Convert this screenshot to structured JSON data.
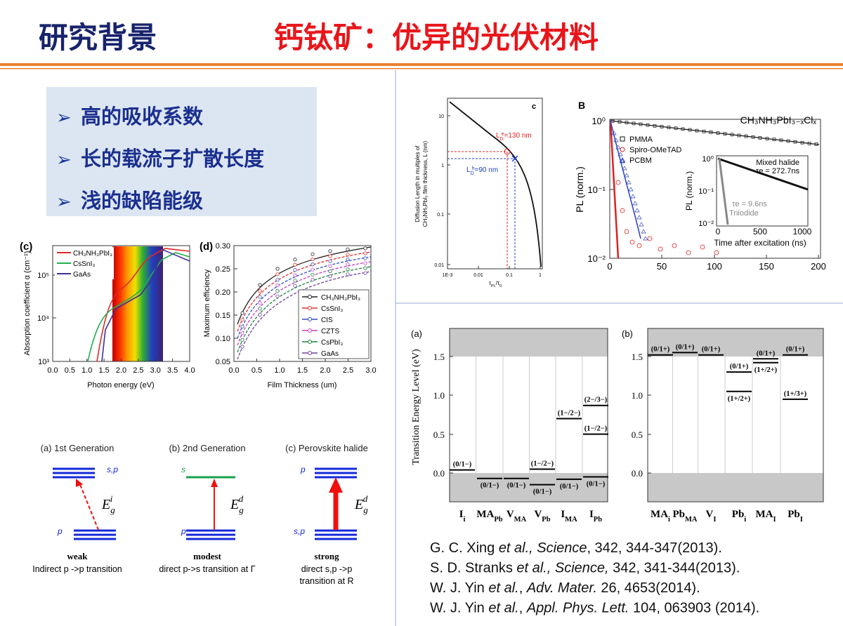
{
  "header": {
    "left": "研究背景",
    "right": "钙钛矿：优异的光伏材料"
  },
  "bullet_marker": "➢",
  "bullets": [
    "高的吸收系数",
    "长的载流子扩散长度",
    "浅的缺陷能级"
  ],
  "absorption": {
    "panel": "(c)",
    "ylabel": "Absorption coefficient α (cm⁻¹)",
    "xlabel": "Photon energy (eV)",
    "yticks": [
      "10⁵",
      "10⁴",
      "10³"
    ],
    "xticks": [
      "0.0",
      "0.5",
      "1.0",
      "1.5",
      "2.0",
      "2.5",
      "3.0",
      "3.5",
      "4.0"
    ],
    "legend": [
      "CH₃NH₃PbI₃",
      "CsSnI₃",
      "GaAs"
    ]
  },
  "efficiency": {
    "panel": "(d)",
    "ylabel": "Maximum efficiency",
    "xlabel": "Film Thickness (um)",
    "yticks": [
      "0.30",
      "0.25",
      "0.20",
      "0.15",
      "0.10",
      "0.05"
    ],
    "xticks": [
      "0.0",
      "0.5",
      "1.0",
      "1.5",
      "2.0",
      "2.5",
      "3.0"
    ],
    "legend": [
      "CH₃NH₃PbI₃",
      "CsSnI₃",
      "CIS",
      "CZTS",
      "CsPbI₃",
      "GaAs"
    ]
  },
  "generations": [
    {
      "title": "(a) 1st Generation",
      "top": "s,p",
      "bottom": "p",
      "energy": {
        "main": "E",
        "sub": "g",
        "sup": "i"
      },
      "strength": "weak",
      "desc": [
        "Indirect p ->p transition"
      ]
    },
    {
      "title": "(b) 2nd Generation",
      "top": "s",
      "bottom": "p",
      "energy": {
        "main": "E",
        "sub": "g",
        "sup": "d"
      },
      "strength": "modest",
      "desc": [
        "direct p->s transition at Γ"
      ]
    },
    {
      "title": "(c) Perovskite halide",
      "top": "p",
      "bottom": "s,p",
      "energy": {
        "main": "E",
        "sub": "g",
        "sup": "d"
      },
      "strength": "strong",
      "desc": [
        "direct s,p ->p",
        "transition at R"
      ]
    }
  ],
  "diffusion": {
    "panel": "c",
    "ylabel": [
      "Diffusion Length in multiples of",
      "CH₃NH₃PbI₃ film thickness, L (nm)"
    ],
    "yticks": [
      "10",
      "1",
      "0.1",
      "0.01"
    ],
    "xticks": [
      "1E-3",
      "0.01",
      "0.1",
      "1"
    ],
    "xlabel": {
      "main": "τ",
      "sub": "PL",
      "mid": "/τ",
      "sub2": "0"
    },
    "electron": {
      "main": "L",
      "sub": "D",
      "sup": "e",
      "rest": "=130 nm"
    },
    "hole": {
      "main": "L",
      "sub": "D",
      "sup": "h",
      "rest": "=90 nm"
    }
  },
  "pl": {
    "panel": "B",
    "title": "CH₃NH₃PbI₃₋ₓClₓ",
    "ylabel": "PL (norm.)",
    "yticks": [
      "10⁰",
      "10⁻¹",
      "10⁻²"
    ],
    "xticks": [
      "0",
      "50",
      "100",
      "150",
      "200"
    ],
    "legend": [
      "PMMA",
      "Spiro-OMeTAD",
      "PCBM"
    ],
    "inset": {
      "ylabel": "PL (norm.)",
      "yticks": [
        "10⁰",
        "10⁻¹",
        "10⁻²"
      ],
      "xticks": [
        "0",
        "500",
        "1000"
      ],
      "xlabel": "Time after excitation (ns)",
      "mixed": "Mixed halide",
      "mixed_tau": "τe = 272.7ns",
      "tri_tau": "τe = 9.6ns",
      "tri": "Triiodide"
    }
  },
  "defects": {
    "ylabel": "Transition Energy Level (eV)",
    "yticks": [
      "0.0",
      "0.5",
      "1.0",
      "1.5"
    ],
    "panels": [
      {
        "label": "(a)",
        "sites": [
          {
            "name": "I",
            "sub": "i",
            "levels": [
              {
                "label": "(0/1−)",
                "energy": 0.04
              }
            ]
          },
          {
            "name": "MA",
            "sub": "Pb",
            "levels": [
              {
                "label": "(0/1−)",
                "energy": -0.07
              }
            ]
          },
          {
            "name": "V",
            "sub": "MA",
            "levels": [
              {
                "label": "(0/1−)",
                "energy": -0.07
              }
            ]
          },
          {
            "name": "V",
            "sub": "Pb",
            "levels": [
              {
                "label": "(1−/2−)",
                "energy": 0.05
              },
              {
                "label": "(0/1−)",
                "energy": -0.15
              }
            ]
          },
          {
            "name": "I",
            "sub": "MA",
            "levels": [
              {
                "label": "(1−/2−)",
                "energy": 0.7
              },
              {
                "label": "(0/1−)",
                "energy": -0.08
              }
            ]
          },
          {
            "name": "I",
            "sub": "Pb",
            "levels": [
              {
                "label": "(2−/3−)",
                "energy": 0.87
              },
              {
                "label": "(1−/2−)",
                "energy": 0.5
              },
              {
                "label": "(0/1−)",
                "energy": -0.05
              }
            ]
          }
        ]
      },
      {
        "label": "(b)",
        "sites": [
          {
            "name": "MA",
            "sub": "i",
            "levels": [
              {
                "label": "(0/1+)",
                "energy": 1.52
              }
            ]
          },
          {
            "name": "Pb",
            "sub": "MA",
            "levels": [
              {
                "label": "(0/1+)",
                "energy": 1.55
              }
            ]
          },
          {
            "name": "V",
            "sub": "I",
            "levels": [
              {
                "label": "(0/1+)",
                "energy": 1.52
              }
            ]
          },
          {
            "name": "Pb",
            "sub": "i",
            "levels": [
              {
                "label": "(0/1+)",
                "energy": 1.3
              },
              {
                "label": "(1+/2+)",
                "energy": 1.05
              }
            ]
          },
          {
            "name": "MA",
            "sub": "I",
            "levels": [
              {
                "label": "(0/1+)",
                "energy": 1.47
              },
              {
                "label": "(1+/2+)",
                "energy": 1.42
              }
            ]
          },
          {
            "name": "Pb",
            "sub": "I",
            "levels": [
              {
                "label": "(0/1+)",
                "energy": 1.52
              },
              {
                "label": "(1+/3+)",
                "energy": 0.95
              }
            ]
          }
        ]
      }
    ]
  },
  "references": [
    [
      {
        "text": "G. C. Xing "
      },
      {
        "text": "et al., Science",
        "italic": true
      },
      {
        "text": ", 342, 344-347(2013)."
      }
    ],
    [
      {
        "text": "S. D. Stranks "
      },
      {
        "text": "et al., Science,",
        "italic": true
      },
      {
        "text": " 342, 341-344(2013)."
      }
    ],
    [
      {
        "text": "W. J. Yin "
      },
      {
        "text": "et al.",
        "italic": true
      },
      {
        "text": ", "
      },
      {
        "text": "Adv. Mater.",
        "italic": true
      },
      {
        "text": " 26, 4653(2014)."
      }
    ],
    [
      {
        "text": "W. J. Yin "
      },
      {
        "text": "et al.",
        "italic": true
      },
      {
        "text": ", "
      },
      {
        "text": "Appl. Phys. Lett.",
        "italic": true
      },
      {
        "text": " 104, 063903 (2014)."
      }
    ]
  ]
}
